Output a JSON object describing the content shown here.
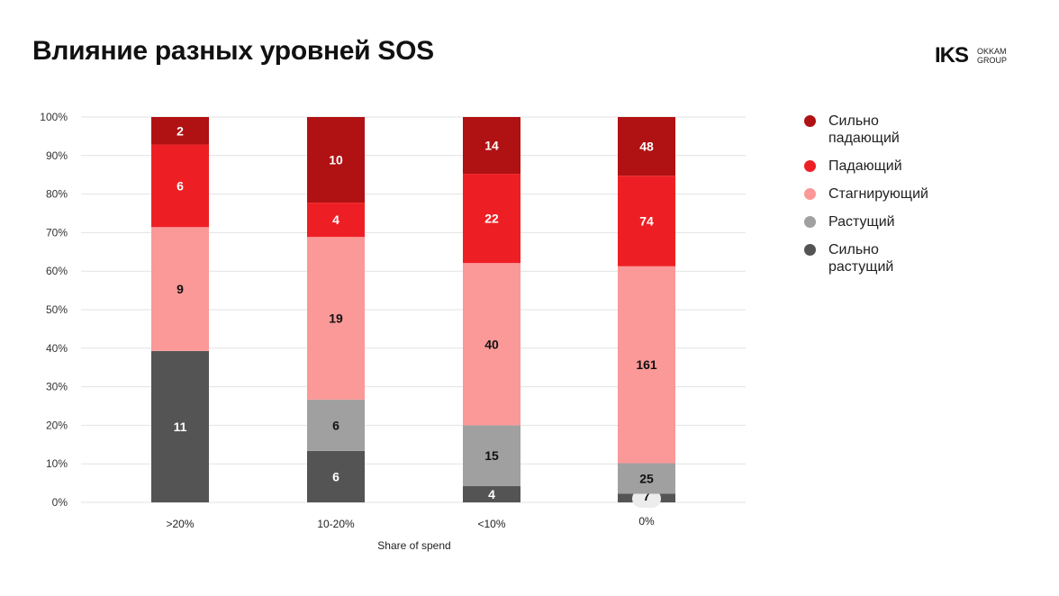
{
  "title": "Влияние разных уровней SOS",
  "logo": {
    "mark": "IKS",
    "sub_line1": "OKKAM",
    "sub_line2": "GROUP"
  },
  "chart_data": {
    "type": "bar",
    "stacked": true,
    "normalized": true,
    "categories": [
      ">20%",
      "10-20%",
      "<10%",
      "0%"
    ],
    "xlabel": "Share of spend",
    "ylabel": "",
    "ylim": [
      0,
      100
    ],
    "yticks": [
      "0%",
      "10%",
      "20%",
      "30%",
      "40%",
      "50%",
      "60%",
      "70%",
      "80%",
      "90%",
      "100%"
    ],
    "grid": true,
    "legend_position": "right",
    "series": [
      {
        "name": "Сильно растущий",
        "color": "#545454",
        "values": [
          11,
          6,
          4,
          7
        ]
      },
      {
        "name": "Растущий",
        "color": "#a0a0a0",
        "values": [
          0,
          6,
          15,
          25
        ]
      },
      {
        "name": "Стагнирующий",
        "color": "#fb9898",
        "values": [
          9,
          19,
          40,
          161
        ]
      },
      {
        "name": "Падающий",
        "color": "#ee1f24",
        "values": [
          6,
          4,
          22,
          74
        ]
      },
      {
        "name": "Сильно падающий",
        "color": "#b01113",
        "values": [
          2,
          10,
          14,
          48
        ]
      }
    ]
  }
}
